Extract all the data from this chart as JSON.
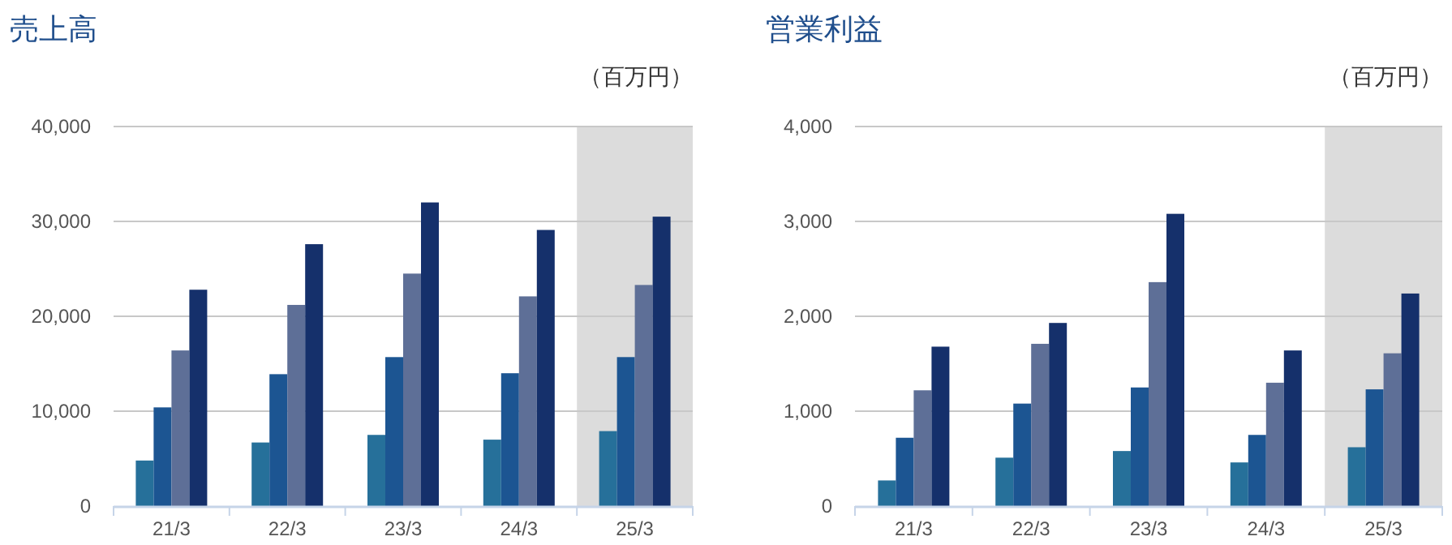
{
  "chart_data": [
    {
      "type": "bar",
      "title": "売上高",
      "annotations": [
        "（百万円）"
      ],
      "categories": [
        "21/3",
        "22/3",
        "23/3",
        "24/3",
        "25/3"
      ],
      "series": [
        {
          "color": "#26709a",
          "values": [
            4800,
            6700,
            7500,
            7000,
            7900
          ]
        },
        {
          "color": "#1c5592",
          "values": [
            10400,
            13900,
            15700,
            14000,
            15700
          ]
        },
        {
          "color": "#5e6f97",
          "values": [
            16400,
            21200,
            24500,
            22100,
            23300
          ]
        },
        {
          "color": "#15306b",
          "values": [
            22800,
            27600,
            32000,
            29100,
            30500
          ]
        }
      ],
      "ylim": [
        0,
        40000
      ],
      "yticks": [
        {
          "value": 0,
          "label": "0"
        },
        {
          "value": 10000,
          "label": "10,000"
        },
        {
          "value": 20000,
          "label": "20,000"
        },
        {
          "value": 30000,
          "label": "30,000"
        },
        {
          "value": 40000,
          "label": "40,000"
        }
      ],
      "grid": "y",
      "bands": [
        {
          "axis": "x",
          "from": "25/3",
          "to": "25/3",
          "color": "#dcdcdc"
        }
      ]
    },
    {
      "type": "bar",
      "title": "営業利益",
      "annotations": [
        "（百万円）"
      ],
      "categories": [
        "21/3",
        "22/3",
        "23/3",
        "24/3",
        "25/3"
      ],
      "series": [
        {
          "color": "#26709a",
          "values": [
            270,
            510,
            580,
            460,
            620
          ]
        },
        {
          "color": "#1c5592",
          "values": [
            720,
            1080,
            1250,
            750,
            1230
          ]
        },
        {
          "color": "#5e6f97",
          "values": [
            1220,
            1710,
            2360,
            1300,
            1610
          ]
        },
        {
          "color": "#15306b",
          "values": [
            1680,
            1930,
            3080,
            1640,
            2240
          ]
        }
      ],
      "ylim": [
        0,
        4000
      ],
      "yticks": [
        {
          "value": 0,
          "label": "0"
        },
        {
          "value": 1000,
          "label": "1,000"
        },
        {
          "value": 2000,
          "label": "2,000"
        },
        {
          "value": 3000,
          "label": "3,000"
        },
        {
          "value": 4000,
          "label": "4,000"
        }
      ],
      "grid": "y",
      "bands": [
        {
          "axis": "x",
          "from": "25/3",
          "to": "25/3",
          "color": "#dcdcdc"
        }
      ]
    }
  ]
}
